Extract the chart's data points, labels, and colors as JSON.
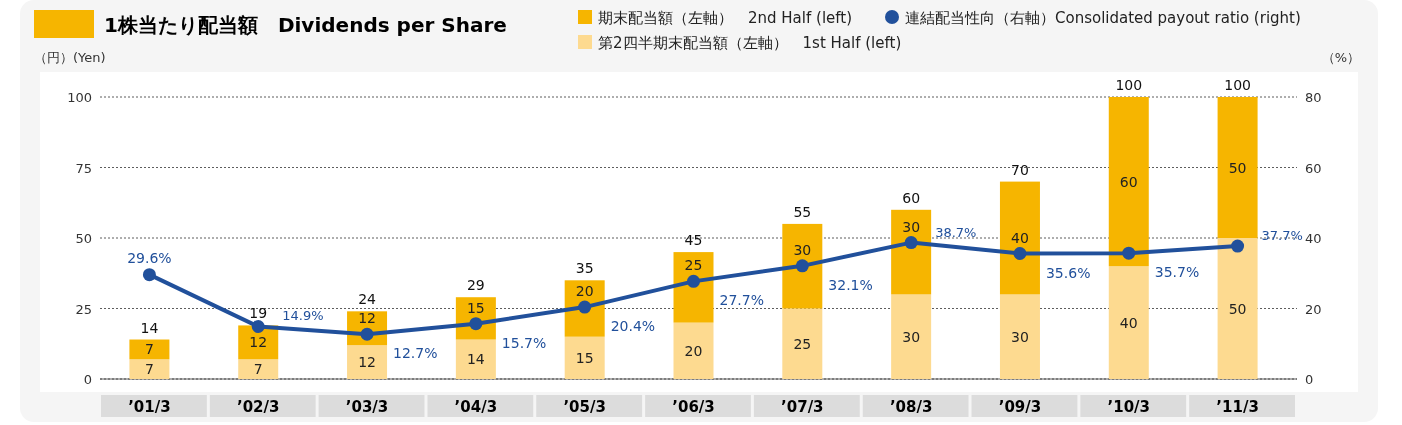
{
  "chart_data": {
    "type": "bar",
    "stacked": true,
    "title": "1株当たり配当額　Dividends per Share",
    "ylabel": "（円）(Yen)",
    "y2label": "（%）",
    "categories": [
      "’01/3",
      "’02/3",
      "’03/3",
      "’04/3",
      "’05/3",
      "’06/3",
      "’07/3",
      "’08/3",
      "’09/3",
      "’10/3",
      "’11/3"
    ],
    "series": [
      {
        "name": "第2四半期末配当額（左軸）　1st Half (left)",
        "color": "#fdda90",
        "values": [
          7,
          7,
          12,
          14,
          15,
          20,
          25,
          30,
          30,
          40,
          50
        ]
      },
      {
        "name": "期末配当額（左軸）　2nd Half (left)",
        "color": "#f6b500",
        "values": [
          7,
          12,
          12,
          15,
          20,
          25,
          30,
          30,
          40,
          60,
          50
        ]
      },
      {
        "name": "連結配当性向（右軸）Consolidated payout ratio (right)",
        "type": "line",
        "axis": "y2",
        "marker": "circle",
        "color": "#21509b",
        "values": [
          29.6,
          14.9,
          12.7,
          15.7,
          20.4,
          27.7,
          32.1,
          38.7,
          35.6,
          35.7,
          37.7
        ],
        "value_labels": [
          "29.6%",
          "14.9%",
          "12.7%",
          "15.7%",
          "20.4%",
          "27.7%",
          "32.1%",
          "38.7%",
          "35.6%",
          "35.7%",
          "37.7%"
        ]
      }
    ],
    "totals": [
      "14",
      "19",
      "24",
      "29",
      "35",
      "45",
      "55",
      "60",
      "70",
      "100",
      "100"
    ],
    "data_labels": true,
    "ylim": [
      0,
      100
    ],
    "yticks": [
      0,
      25,
      50,
      75,
      100
    ],
    "y2lim": [
      0,
      80
    ],
    "y2ticks": [
      0,
      20,
      40,
      60,
      80
    ],
    "grid": "y",
    "legend": "top right"
  }
}
